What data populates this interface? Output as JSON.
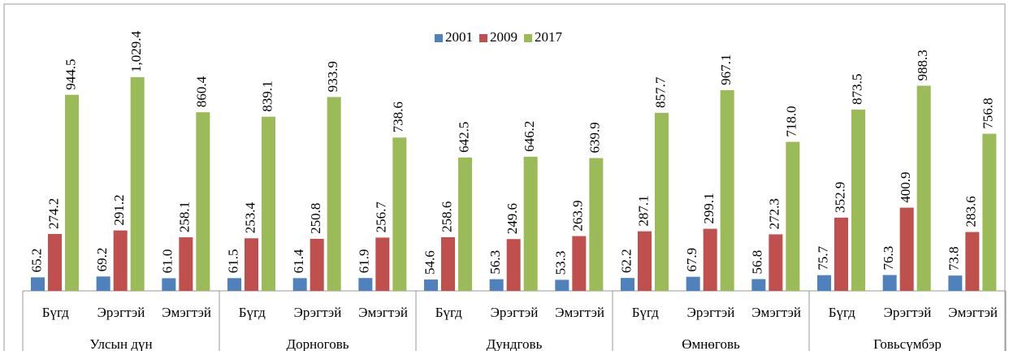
{
  "chart_data": {
    "type": "bar",
    "groups": [
      "Улсын дүн",
      "Дорноговь",
      "Дундговь",
      "Өмнөговь",
      "Говьсүмбэр"
    ],
    "categories": [
      "Бүгд",
      "Эрэгтэй",
      "Эмэгтэй",
      "Бүгд",
      "Эрэгтэй",
      "Эмэгтэй",
      "Бүгд",
      "Эрэгтэй",
      "Эмэгтэй",
      "Бүгд",
      "Эрэгтэй",
      "Эмэгтэй",
      "Бүгд",
      "Эрэгтэй",
      "Эмэгтэй"
    ],
    "series": [
      {
        "name": "2001",
        "color": "#4f81bd",
        "values": [
          65.2,
          69.2,
          61.0,
          61.5,
          61.4,
          61.9,
          54.6,
          56.3,
          53.3,
          62.2,
          67.9,
          56.8,
          75.7,
          76.3,
          73.8
        ],
        "value_labels": [
          "65.2",
          "69.2",
          "61.0",
          "61.5",
          "61.4",
          "61.9",
          "54.6",
          "56.3",
          "53.3",
          "62.2",
          "67.9",
          "56.8",
          "75.7",
          "76.3",
          "73.8"
        ]
      },
      {
        "name": "2009",
        "color": "#c0504d",
        "values": [
          274.2,
          291.2,
          258.1,
          253.4,
          250.8,
          256.7,
          258.6,
          249.6,
          263.9,
          287.1,
          299.1,
          272.3,
          352.9,
          400.9,
          283.6
        ],
        "value_labels": [
          "274.2",
          "291.2",
          "258.1",
          "253.4",
          "250.8",
          "256.7",
          "258.6",
          "249.6",
          "263.9",
          "287.1",
          "299.1",
          "272.3",
          "352.9",
          "400.9",
          "283.6"
        ]
      },
      {
        "name": "2017",
        "color": "#9bbb59",
        "values": [
          944.5,
          1029.4,
          860.4,
          839.1,
          933.9,
          738.6,
          642.5,
          646.2,
          639.9,
          857.7,
          967.1,
          718.0,
          873.5,
          988.3,
          756.8
        ],
        "value_labels": [
          "944.5",
          "1,029.4",
          "860.4",
          "839.1",
          "933.9",
          "738.6",
          "642.5",
          "646.2",
          "639.9",
          "857.7",
          "967.1",
          "718.0",
          "873.5",
          "988.3",
          "756.8"
        ]
      }
    ],
    "legend": "top"
  }
}
